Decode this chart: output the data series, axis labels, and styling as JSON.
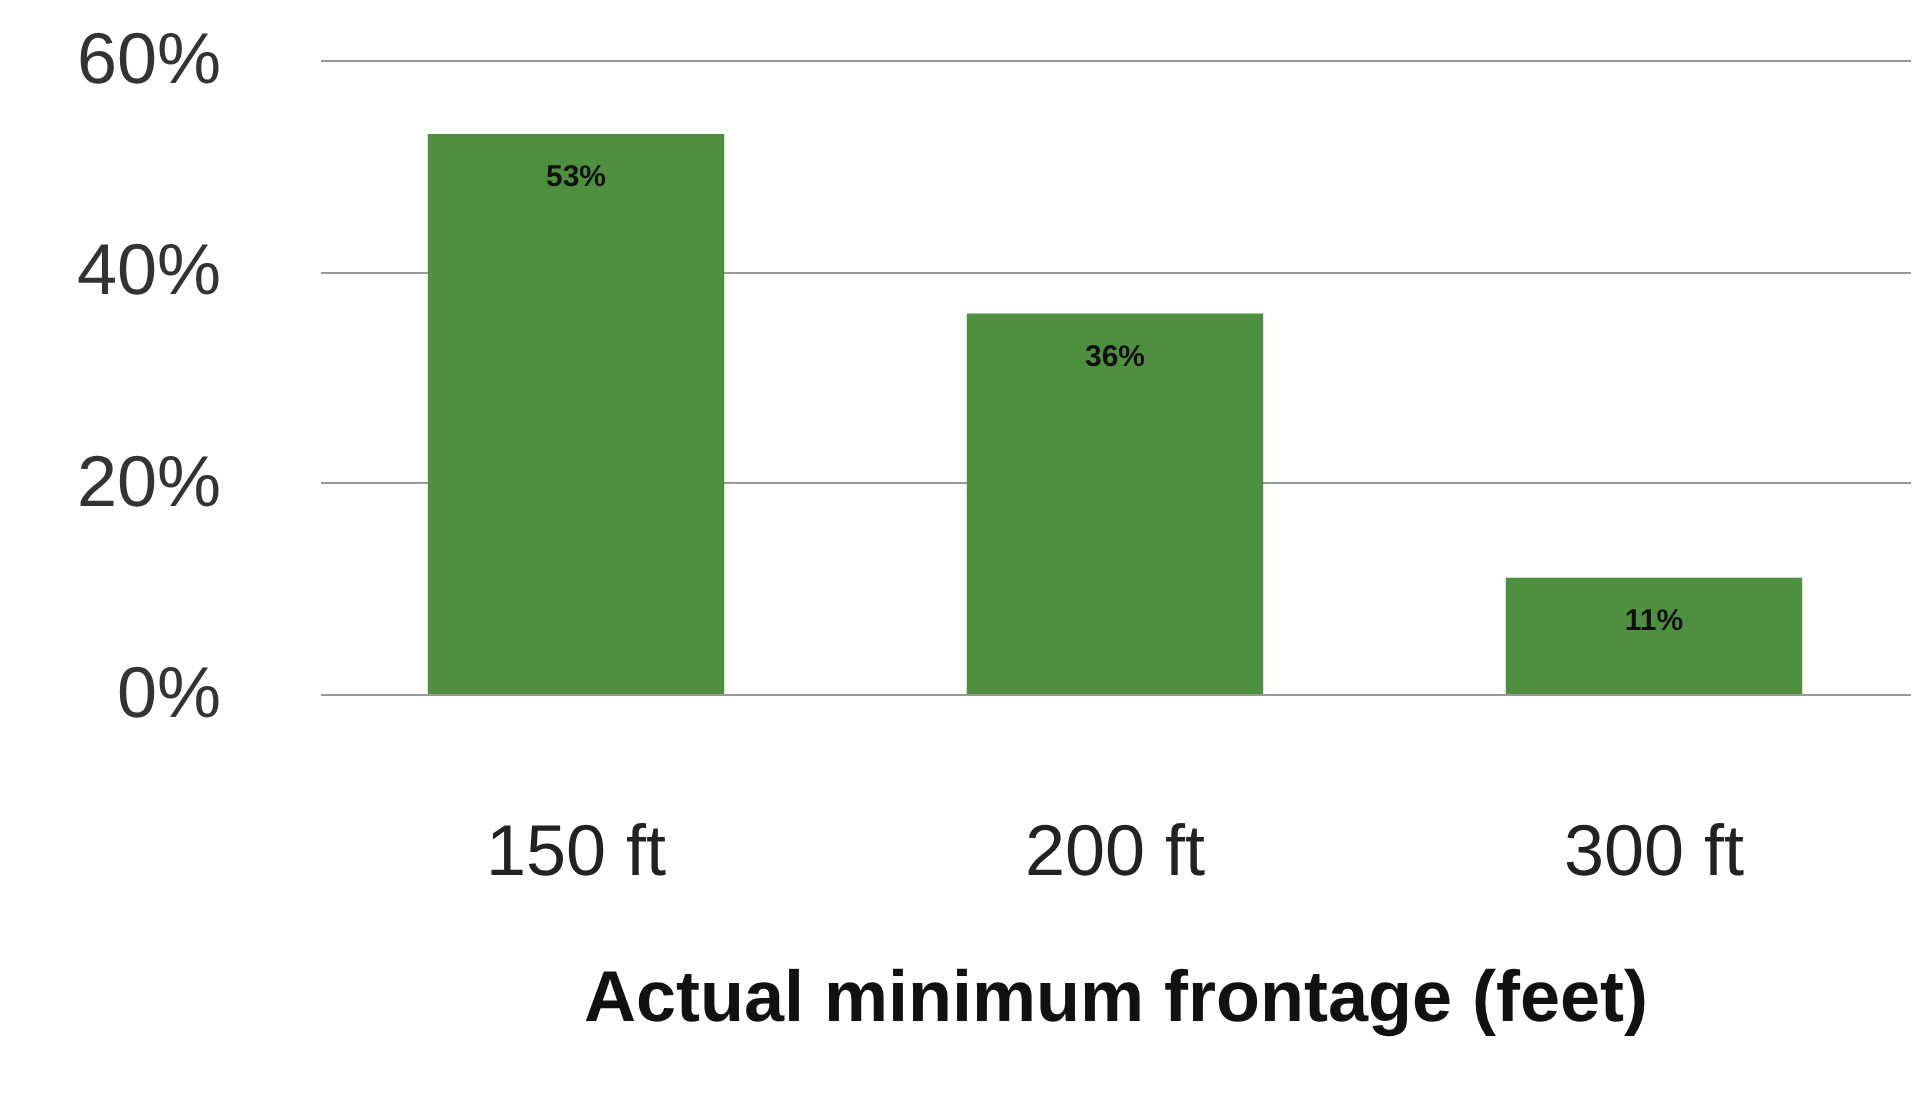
{
  "chart_data": {
    "type": "bar",
    "xlabel": "Actual minimum frontage (feet)",
    "categories": [
      "150 ft",
      "200 ft",
      "300 ft"
    ],
    "values": [
      53,
      36,
      11
    ],
    "value_labels": [
      "53%",
      "36%",
      "11%"
    ],
    "color": "#4e9040",
    "ylim": [
      0,
      60
    ],
    "yticks": [
      {
        "value": 0,
        "label": "0%"
      },
      {
        "value": 20,
        "label": "20%"
      },
      {
        "value": 40,
        "label": "40%"
      },
      {
        "value": 60,
        "label": "60%"
      }
    ],
    "grid": "y"
  }
}
